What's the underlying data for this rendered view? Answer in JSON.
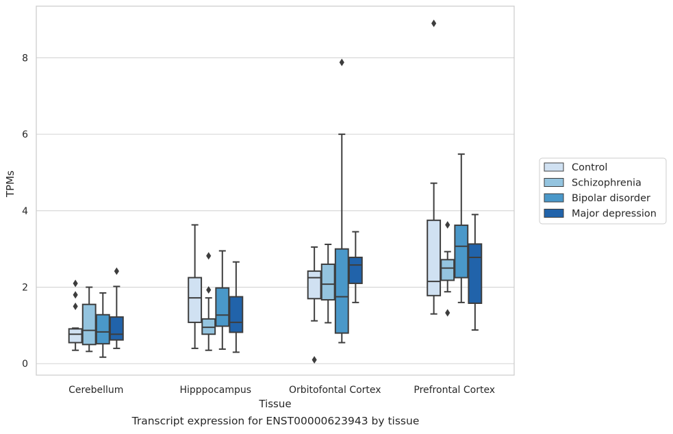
{
  "caption": "Transcript expression for ENST00000623943 by tissue",
  "chart_data": {
    "type": "box",
    "xlabel": "Tissue",
    "ylabel": "TPMs",
    "ylim": [
      -0.3,
      9.35
    ],
    "yticks": [
      0,
      2,
      4,
      6,
      8
    ],
    "grid": "horizontal",
    "legend_position": "right",
    "categories": [
      "Cerebellum",
      "Hipppocampus",
      "Orbitofontal Cortex",
      "Prefrontal Cortex"
    ],
    "series": [
      {
        "name": "Control",
        "color": "#d0e1f2",
        "boxes": [
          {
            "whislo": 0.35,
            "q1": 0.55,
            "med": 0.77,
            "q3": 0.91,
            "whishi": 0.93,
            "fliers": [
              1.5,
              1.8,
              2.1
            ]
          },
          {
            "whislo": 0.4,
            "q1": 1.08,
            "med": 1.72,
            "q3": 2.25,
            "whishi": 3.63,
            "fliers": []
          },
          {
            "whislo": 1.12,
            "q1": 1.7,
            "med": 2.25,
            "q3": 2.42,
            "whishi": 3.05,
            "fliers": [
              0.1
            ]
          },
          {
            "whislo": 1.3,
            "q1": 1.78,
            "med": 2.15,
            "q3": 3.75,
            "whishi": 4.72,
            "fliers": [
              8.9
            ]
          }
        ]
      },
      {
        "name": "Schizophrenia",
        "color": "#94c4df",
        "boxes": [
          {
            "whislo": 0.32,
            "q1": 0.5,
            "med": 0.87,
            "q3": 1.55,
            "whishi": 2.0,
            "fliers": []
          },
          {
            "whislo": 0.35,
            "q1": 0.77,
            "med": 0.95,
            "q3": 1.17,
            "whishi": 1.72,
            "fliers": [
              1.93,
              2.82
            ]
          },
          {
            "whislo": 1.07,
            "q1": 1.67,
            "med": 2.08,
            "q3": 2.6,
            "whishi": 3.12,
            "fliers": []
          },
          {
            "whislo": 1.88,
            "q1": 2.18,
            "med": 2.5,
            "q3": 2.72,
            "whishi": 2.93,
            "fliers": [
              1.33,
              3.63
            ]
          }
        ]
      },
      {
        "name": "Bipolar disorder",
        "color": "#4a98c9",
        "boxes": [
          {
            "whislo": 0.17,
            "q1": 0.52,
            "med": 0.83,
            "q3": 1.28,
            "whishi": 1.85,
            "fliers": []
          },
          {
            "whislo": 0.38,
            "q1": 0.98,
            "med": 1.27,
            "q3": 1.98,
            "whishi": 2.95,
            "fliers": []
          },
          {
            "whislo": 0.55,
            "q1": 0.8,
            "med": 1.75,
            "q3": 3.0,
            "whishi": 6.0,
            "fliers": [
              7.88
            ]
          },
          {
            "whislo": 1.6,
            "q1": 2.25,
            "med": 3.07,
            "q3": 3.62,
            "whishi": 5.48,
            "fliers": []
          }
        ]
      },
      {
        "name": "Major depression",
        "color": "#2163aa",
        "boxes": [
          {
            "whislo": 0.4,
            "q1": 0.62,
            "med": 0.77,
            "q3": 1.22,
            "whishi": 2.02,
            "fliers": [
              2.42
            ]
          },
          {
            "whislo": 0.3,
            "q1": 0.82,
            "med": 1.08,
            "q3": 1.75,
            "whishi": 2.66,
            "fliers": []
          },
          {
            "whislo": 1.6,
            "q1": 2.1,
            "med": 2.58,
            "q3": 2.78,
            "whishi": 3.45,
            "fliers": []
          },
          {
            "whislo": 0.88,
            "q1": 1.58,
            "med": 2.78,
            "q3": 3.13,
            "whishi": 3.9,
            "fliers": []
          }
        ]
      }
    ]
  }
}
